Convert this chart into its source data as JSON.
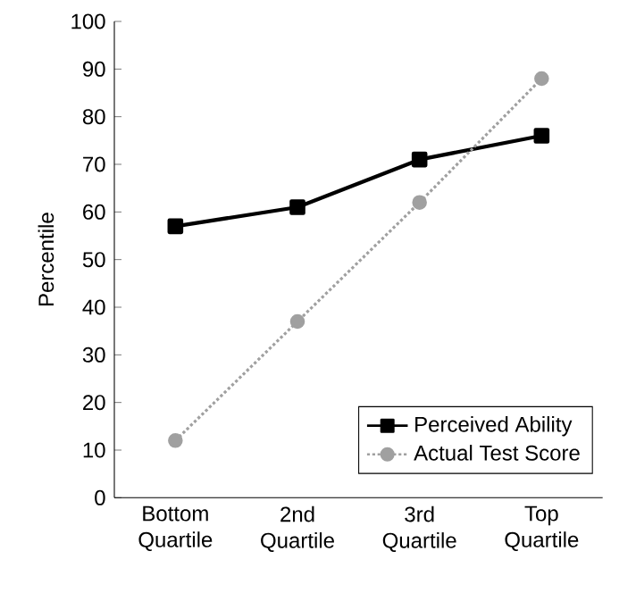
{
  "chart_data": {
    "type": "line",
    "ylabel": "Percentile",
    "categories": [
      "Bottom Quartile",
      "2nd Quartile",
      "3rd Quartile",
      "Top Quartile"
    ],
    "series": [
      {
        "name": "Perceived Ability",
        "color": "#000000",
        "marker": "square",
        "line_style": "solid",
        "values": [
          57,
          61,
          71,
          76
        ]
      },
      {
        "name": "Actual Test Score",
        "color": "#a0a0a0",
        "marker": "circle",
        "line_style": "dotted",
        "values": [
          12,
          37,
          62,
          88
        ]
      }
    ],
    "ylim": [
      0,
      100
    ],
    "yticks": [
      0,
      10,
      20,
      30,
      40,
      50,
      60,
      70,
      80,
      90,
      100
    ],
    "grid": false,
    "legend": "bottom right"
  }
}
